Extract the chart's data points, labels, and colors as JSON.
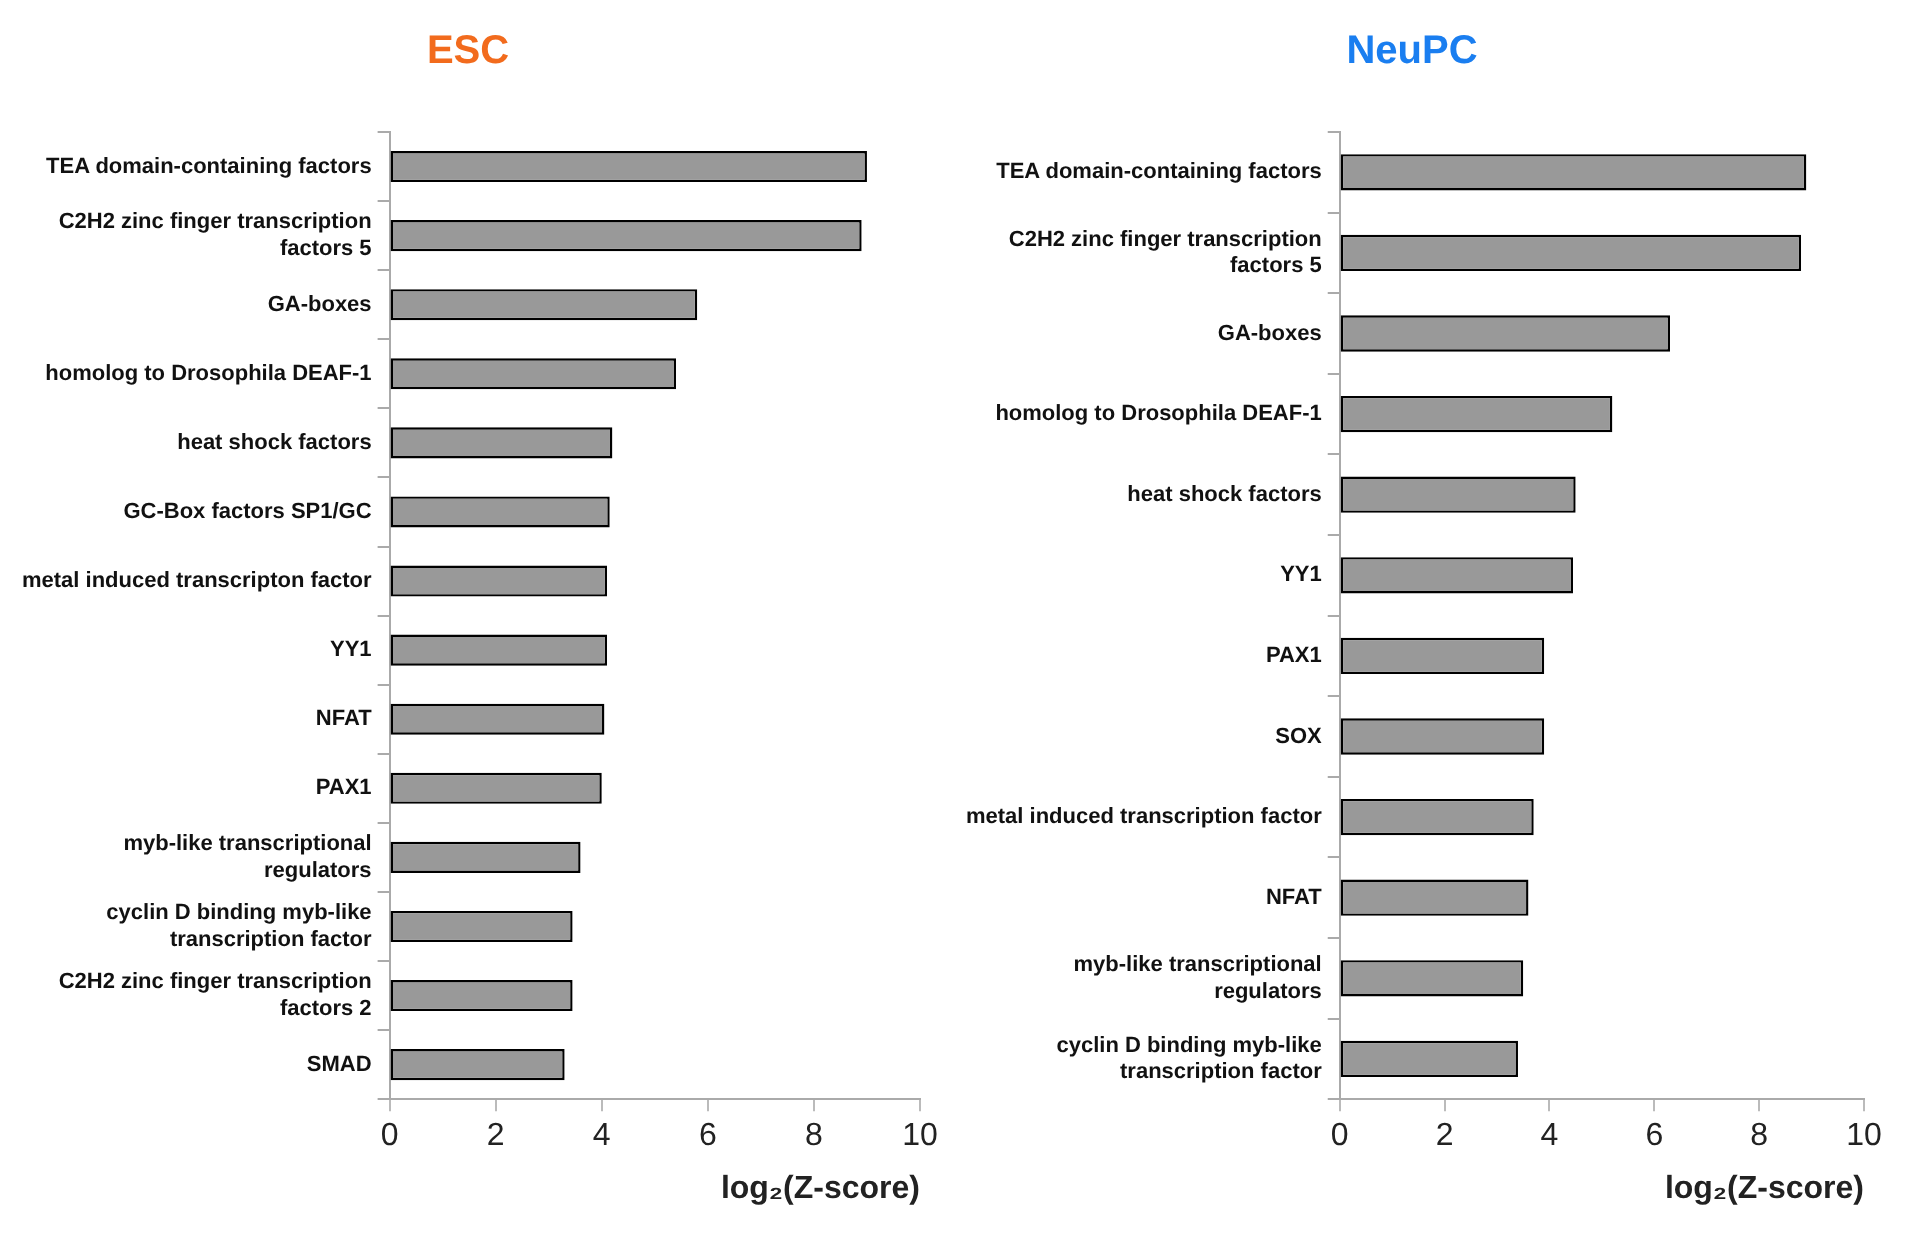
{
  "chart_data": [
    {
      "type": "bar",
      "orientation": "horizontal",
      "title": "ESC",
      "xlabel": "log₂(Z-score)",
      "categories": [
        "TEA domain-containing factors",
        "C2H2 zinc finger transcription factors 5",
        "GA-boxes",
        "homolog to Drosophila DEAF-1",
        "heat shock factors",
        "GC-Box factors SP1/GC",
        "metal induced transcripton factor",
        "YY1",
        "NFAT",
        "PAX1",
        "myb-like transcriptional regulators",
        "cyclin D binding myb-like transcription factor",
        "C2H2 zinc finger transcription factors 2",
        "SMAD"
      ],
      "values": [
        9.0,
        8.9,
        5.8,
        5.4,
        4.2,
        4.15,
        4.1,
        4.1,
        4.05,
        4.0,
        3.6,
        3.45,
        3.45,
        3.3
      ],
      "color": "#999999",
      "xlim": [
        0,
        10
      ],
      "xticks": [
        0,
        2,
        4,
        6,
        8,
        10
      ],
      "grid": false,
      "legend": false
    },
    {
      "type": "bar",
      "orientation": "horizontal",
      "title": "NeuPC",
      "xlabel": "log₂(Z-score)",
      "categories": [
        "TEA domain-containing factors",
        "C2H2 zinc finger transcription factors 5",
        "GA-boxes",
        "homolog to Drosophila DEAF-1",
        "heat shock factors",
        "YY1",
        "PAX1",
        "SOX",
        "metal induced transcription factor",
        "NFAT",
        "myb-like transcriptional regulators",
        "cyclin D binding myb-like transcription factor"
      ],
      "values": [
        8.9,
        8.8,
        6.3,
        5.2,
        4.5,
        4.45,
        3.9,
        3.9,
        3.7,
        3.6,
        3.5,
        3.4
      ],
      "color": "#999999",
      "xlim": [
        0,
        10
      ],
      "xticks": [
        0,
        2,
        4,
        6,
        8,
        10
      ],
      "grid": false,
      "legend": false
    }
  ]
}
